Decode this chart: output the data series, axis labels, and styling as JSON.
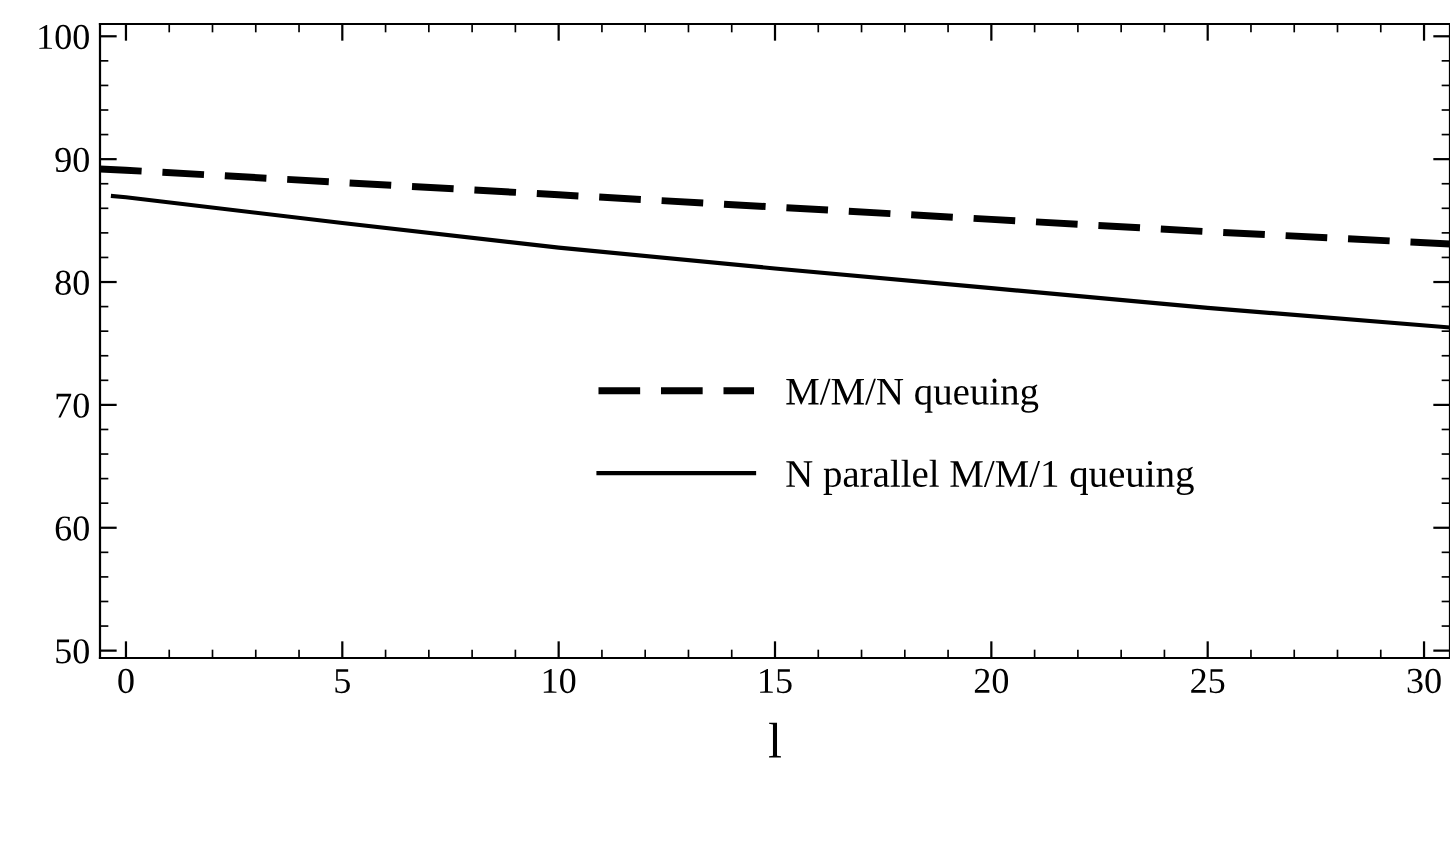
{
  "chart_data": {
    "type": "line",
    "xlabel": "l",
    "xlim": [
      -0.6,
      30.6
    ],
    "ylim": [
      49.4,
      101
    ],
    "xticks": [
      0,
      5,
      10,
      15,
      20,
      25,
      30
    ],
    "yticks": [
      50,
      60,
      70,
      80,
      90,
      100
    ],
    "legend": "center",
    "grid": false,
    "series": [
      {
        "name": "M/M/N queuing",
        "color": "#000000",
        "line_style": "dashed",
        "x": [
          -0.6,
          0,
          5,
          10,
          15,
          20,
          25,
          30.6
        ],
        "values": [
          89.2,
          89.1,
          88.1,
          87.1,
          86.1,
          85.1,
          84.1,
          83.1
        ]
      },
      {
        "name": "N parallel M/M/1 queuing",
        "color": "#000000",
        "line_style": "solid",
        "x": [
          -0.3,
          0,
          5,
          10,
          15,
          20,
          25,
          30.6
        ],
        "values": [
          87.0,
          86.9,
          84.8,
          82.8,
          81.1,
          79.5,
          77.9,
          76.3
        ]
      }
    ]
  }
}
